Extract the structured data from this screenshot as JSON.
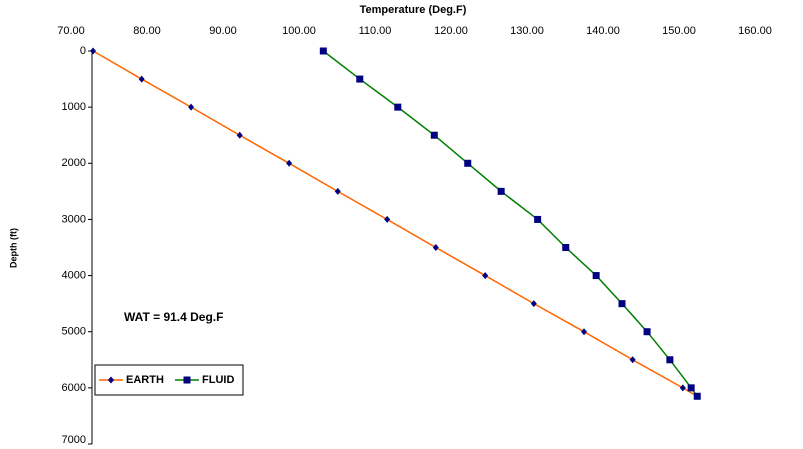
{
  "chart_data": {
    "type": "line",
    "x_label": "Temperature (Deg.F)",
    "y_label": "Depth (ft)",
    "annotation": "WAT = 91.4 Deg.F",
    "xlim": [
      70,
      160
    ],
    "xticks": [
      {
        "value": 70,
        "label": "70.00"
      },
      {
        "value": 80,
        "label": "80.00"
      },
      {
        "value": 90,
        "label": "90.00"
      },
      {
        "value": 100,
        "label": "100.00"
      },
      {
        "value": 110,
        "label": "110.00"
      },
      {
        "value": 120,
        "label": "120.00"
      },
      {
        "value": 130,
        "label": "130.00"
      },
      {
        "value": 140,
        "label": "140.00"
      },
      {
        "value": 150,
        "label": "150.00"
      },
      {
        "value": 160,
        "label": "160.00"
      }
    ],
    "ylim": [
      0,
      7000
    ],
    "yticks": [
      0,
      1000,
      2000,
      3000,
      4000,
      5000,
      6000,
      7000
    ],
    "y_inverted": true,
    "marker_color": "#000080",
    "series": [
      {
        "name": "EARTH",
        "color": "#ff6600",
        "marker": "diamond",
        "x": [
          72.9,
          79.3,
          85.8,
          92.2,
          98.7,
          105.1,
          111.6,
          118.0,
          124.5,
          130.9,
          137.5,
          143.9,
          150.5,
          152.4
        ],
        "values": [
          0,
          500,
          1000,
          1500,
          2000,
          2500,
          3000,
          3500,
          4000,
          4500,
          5000,
          5500,
          6000,
          6150
        ]
      },
      {
        "name": "FLUID",
        "color": "#008000",
        "marker": "square",
        "x": [
          103.2,
          108.0,
          113.0,
          117.8,
          122.2,
          126.6,
          131.4,
          135.1,
          139.1,
          142.5,
          145.8,
          148.8,
          151.6,
          152.4
        ],
        "values": [
          0,
          500,
          1000,
          1500,
          2000,
          2500,
          3000,
          3500,
          4000,
          4500,
          5000,
          5500,
          6000,
          6150
        ]
      }
    ]
  }
}
